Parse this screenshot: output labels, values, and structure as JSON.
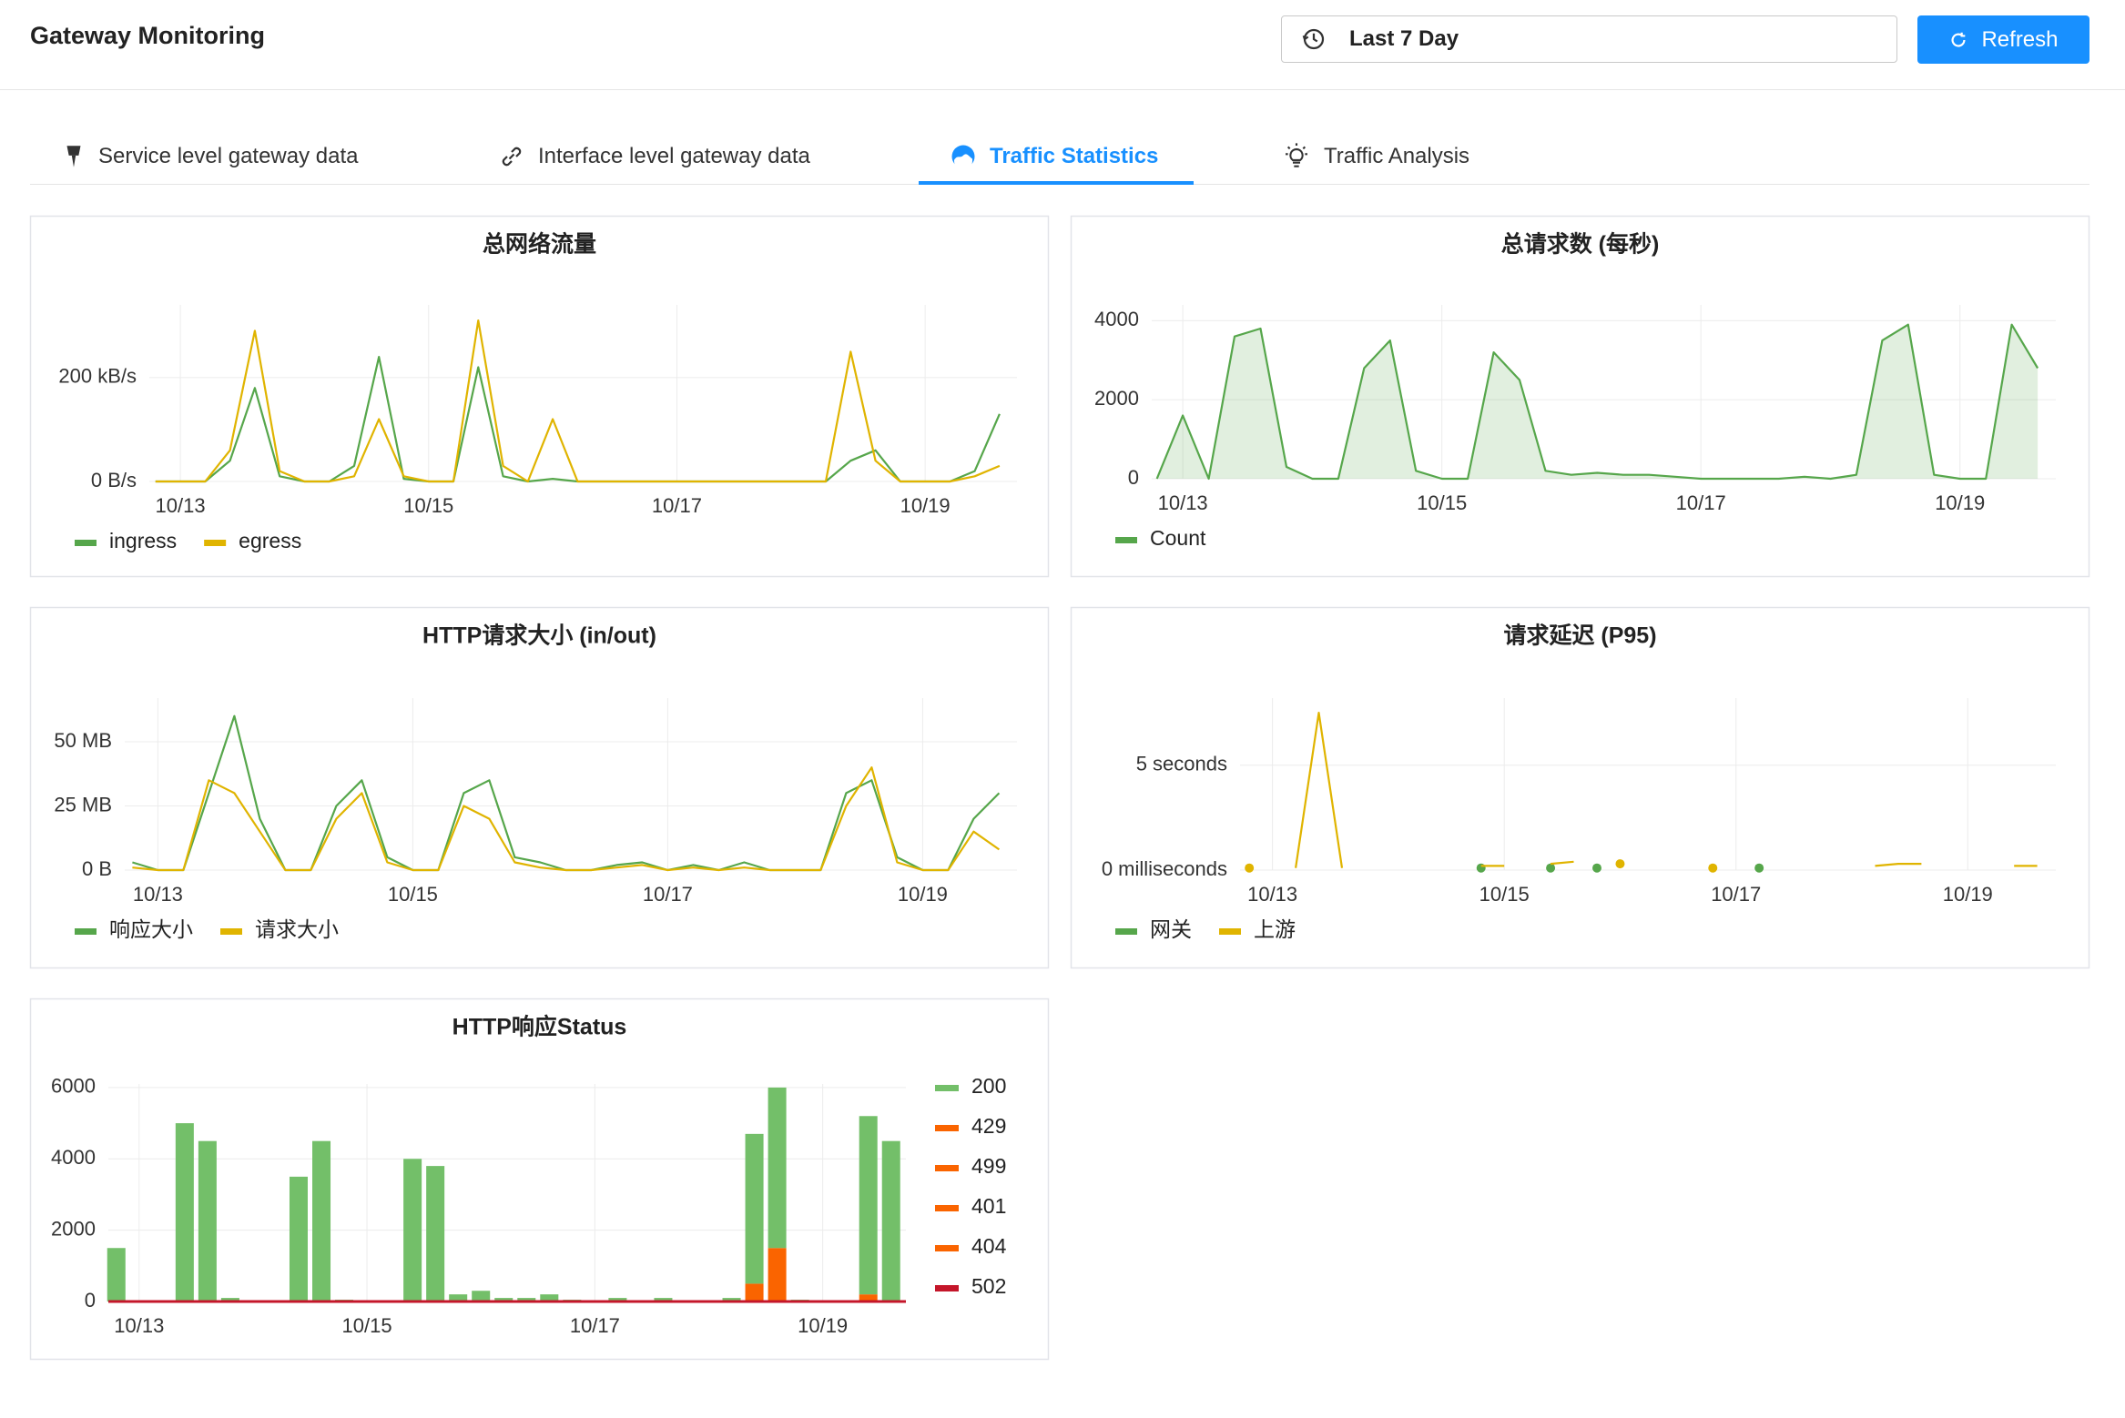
{
  "header": {
    "title": "Gateway Monitoring",
    "time_range": "Last 7 Day",
    "refresh": "Refresh"
  },
  "tabs": [
    "Service level gateway data",
    "Interface level gateway data",
    "Traffic Statistics",
    "Traffic Analysis"
  ],
  "active_tab": 2,
  "chart_data": [
    {
      "type": "line",
      "title": "总网络流量",
      "legend": "bottom",
      "x": [
        12.8,
        13,
        13.2,
        13.4,
        13.6,
        13.8,
        14,
        14.2,
        14.4,
        14.6,
        14.8,
        15,
        15.2,
        15.4,
        15.6,
        15.8,
        16,
        16.2,
        16.4,
        16.6,
        16.8,
        17,
        17.2,
        17.4,
        17.6,
        17.8,
        18,
        18.2,
        18.4,
        18.6,
        18.8,
        19,
        19.2,
        19.4,
        19.6
      ],
      "xlim": [
        12.75,
        19.74
      ],
      "xticks": [
        {
          "value": 13,
          "label": "10/13"
        },
        {
          "value": 15,
          "label": "10/15"
        },
        {
          "value": 17,
          "label": "10/17"
        },
        {
          "value": 19,
          "label": "10/19"
        }
      ],
      "ylim": [
        0,
        340
      ],
      "yticks": [
        {
          "value": 0,
          "label": "0 B/s"
        },
        {
          "value": 200,
          "label": "200 kB/s"
        }
      ],
      "series": [
        {
          "name": "ingress",
          "color": "#56a64b",
          "values": [
            0,
            0,
            0,
            40,
            180,
            10,
            0,
            0,
            30,
            240,
            5,
            0,
            0,
            220,
            10,
            0,
            5,
            0,
            0,
            0,
            0,
            0,
            0,
            0,
            0,
            0,
            0,
            0,
            40,
            60,
            0,
            0,
            0,
            20,
            130
          ]
        },
        {
          "name": "egress",
          "color": "#e0b400",
          "values": [
            0,
            0,
            0,
            60,
            290,
            20,
            0,
            0,
            10,
            120,
            10,
            0,
            0,
            310,
            30,
            0,
            120,
            0,
            0,
            0,
            0,
            0,
            0,
            0,
            0,
            0,
            0,
            0,
            250,
            40,
            0,
            0,
            0,
            10,
            30
          ]
        }
      ]
    },
    {
      "type": "line",
      "title": "总请求数 (每秒)",
      "legend": "bottom",
      "area": true,
      "x": [
        12.8,
        13,
        13.2,
        13.4,
        13.6,
        13.8,
        14,
        14.2,
        14.4,
        14.6,
        14.8,
        15,
        15.2,
        15.4,
        15.6,
        15.8,
        16,
        16.2,
        16.4,
        16.6,
        16.8,
        17,
        17.2,
        17.4,
        17.6,
        17.8,
        18,
        18.2,
        18.4,
        18.6,
        18.8,
        19,
        19.2,
        19.4,
        19.6
      ],
      "xlim": [
        12.76,
        19.74
      ],
      "xticks": [
        {
          "value": 13,
          "label": "10/13"
        },
        {
          "value": 15,
          "label": "10/15"
        },
        {
          "value": 17,
          "label": "10/17"
        },
        {
          "value": 19,
          "label": "10/19"
        }
      ],
      "ylim": [
        0,
        4400
      ],
      "yticks": [
        0,
        2000,
        4000
      ],
      "series": [
        {
          "name": "Count",
          "color": "#56a64b",
          "values": [
            0,
            1600,
            0,
            3600,
            3800,
            300,
            0,
            0,
            2800,
            3500,
            200,
            0,
            0,
            3200,
            2500,
            200,
            100,
            150,
            100,
            100,
            50,
            0,
            0,
            0,
            0,
            50,
            0,
            100,
            3500,
            3900,
            100,
            0,
            0,
            3900,
            2800
          ]
        }
      ]
    },
    {
      "type": "line",
      "title": "HTTP请求大小 (in/out)",
      "legend": "bottom",
      "x": [
        12.8,
        13,
        13.2,
        13.4,
        13.6,
        13.8,
        14,
        14.2,
        14.4,
        14.6,
        14.8,
        15,
        15.2,
        15.4,
        15.6,
        15.8,
        16,
        16.2,
        16.4,
        16.6,
        16.8,
        17,
        17.2,
        17.4,
        17.6,
        17.8,
        18,
        18.2,
        18.4,
        18.6,
        18.8,
        19,
        19.2,
        19.4,
        19.6
      ],
      "xlim": [
        12.74,
        19.74
      ],
      "xticks": [
        {
          "value": 13,
          "label": "10/13"
        },
        {
          "value": 15,
          "label": "10/15"
        },
        {
          "value": 17,
          "label": "10/17"
        },
        {
          "value": 19,
          "label": "10/19"
        }
      ],
      "ylim": [
        0,
        67
      ],
      "yticks": [
        {
          "value": 0,
          "label": "0 B"
        },
        {
          "value": 25,
          "label": "25 MB"
        },
        {
          "value": 50,
          "label": "50 MB"
        }
      ],
      "series": [
        {
          "name": "响应大小",
          "color": "#56a64b",
          "values": [
            3,
            0,
            0,
            30,
            60,
            20,
            0,
            0,
            25,
            35,
            5,
            0,
            0,
            30,
            35,
            5,
            3,
            0,
            0,
            2,
            3,
            0,
            2,
            0,
            3,
            0,
            0,
            0,
            30,
            35,
            5,
            0,
            0,
            20,
            30
          ]
        },
        {
          "name": "请求大小",
          "color": "#e0b400",
          "values": [
            1,
            0,
            0,
            35,
            30,
            15,
            0,
            0,
            20,
            30,
            3,
            0,
            0,
            25,
            20,
            3,
            1,
            0,
            0,
            1,
            2,
            0,
            1,
            0,
            1,
            0,
            0,
            0,
            25,
            40,
            3,
            0,
            0,
            15,
            8
          ]
        }
      ]
    },
    {
      "type": "line",
      "title": "请求延迟 (P95)",
      "legend": "bottom",
      "x": [
        12.8,
        13,
        13.2,
        13.4,
        13.6,
        13.8,
        14,
        14.2,
        14.4,
        14.6,
        14.8,
        15,
        15.2,
        15.4,
        15.6,
        15.8,
        16,
        16.2,
        16.4,
        16.6,
        16.8,
        17,
        17.2,
        17.4,
        17.6,
        17.8,
        18,
        18.2,
        18.4,
        18.6,
        18.8,
        19,
        19.2,
        19.4,
        19.6
      ],
      "xlim": [
        12.72,
        19.76
      ],
      "xticks": [
        {
          "value": 13,
          "label": "10/13"
        },
        {
          "value": 15,
          "label": "10/15"
        },
        {
          "value": 17,
          "label": "10/17"
        },
        {
          "value": 19,
          "label": "10/19"
        }
      ],
      "ylim": [
        0,
        8.2
      ],
      "yticks": [
        {
          "value": 0,
          "label": "0 milliseconds"
        },
        {
          "value": 5,
          "label": "5 seconds"
        }
      ],
      "series": [
        {
          "name": "网关",
          "color": "#56a64b",
          "values": [
            null,
            null,
            null,
            null,
            null,
            null,
            null,
            null,
            null,
            null,
            0.1,
            null,
            null,
            0.1,
            null,
            0.1,
            null,
            null,
            null,
            null,
            null,
            null,
            0.1,
            null,
            null,
            null,
            null,
            null,
            null,
            null,
            null,
            null,
            null,
            null,
            null
          ]
        },
        {
          "name": "上游",
          "color": "#e0b400",
          "values": [
            0.1,
            null,
            0.1,
            7.5,
            0.1,
            null,
            null,
            null,
            null,
            null,
            0.2,
            0.2,
            null,
            0.3,
            0.4,
            null,
            0.3,
            null,
            null,
            null,
            0.1,
            null,
            null,
            null,
            null,
            null,
            null,
            0.2,
            0.3,
            0.3,
            null,
            null,
            null,
            0.2,
            0.2
          ]
        }
      ]
    },
    {
      "type": "bar",
      "title": "HTTP响应Status",
      "legend": "right",
      "x": [
        12.8,
        13,
        13.2,
        13.4,
        13.6,
        13.8,
        14,
        14.2,
        14.4,
        14.6,
        14.8,
        15,
        15.2,
        15.4,
        15.6,
        15.8,
        16,
        16.2,
        16.4,
        16.6,
        16.8,
        17,
        17.2,
        17.4,
        17.6,
        17.8,
        18,
        18.2,
        18.4,
        18.6,
        18.8,
        19,
        19.2,
        19.4,
        19.6
      ],
      "xlim": [
        12.73,
        19.73
      ],
      "xticks": [
        {
          "value": 13,
          "label": "10/13"
        },
        {
          "value": 15,
          "label": "10/15"
        },
        {
          "value": 17,
          "label": "10/17"
        },
        {
          "value": 19,
          "label": "10/19"
        }
      ],
      "ylim": [
        0,
        6100
      ],
      "yticks": [
        0,
        2000,
        4000,
        6000
      ],
      "series": [
        {
          "name": "200",
          "color": "#73bf69",
          "values": [
            1500,
            0,
            0,
            5000,
            4500,
            100,
            0,
            0,
            3500,
            4500,
            50,
            0,
            0,
            4000,
            3800,
            200,
            300,
            100,
            100,
            200,
            50,
            0,
            100,
            0,
            100,
            0,
            0,
            100,
            4200,
            4500,
            50,
            0,
            0,
            5000,
            4500
          ]
        },
        {
          "name": "429",
          "color": "#fa6400",
          "values": [
            0,
            0,
            0,
            0,
            0,
            0,
            0,
            0,
            0,
            0,
            0,
            0,
            0,
            0,
            0,
            0,
            0,
            0,
            0,
            0,
            0,
            0,
            0,
            0,
            0,
            0,
            0,
            0,
            0,
            1500,
            0,
            0,
            0,
            0,
            0
          ]
        },
        {
          "name": "499",
          "color": "#fa6400",
          "values": [
            0,
            0,
            0,
            0,
            0,
            0,
            0,
            0,
            0,
            0,
            0,
            0,
            0,
            0,
            0,
            0,
            0,
            0,
            0,
            0,
            0,
            0,
            0,
            0,
            0,
            0,
            0,
            0,
            500,
            0,
            0,
            0,
            0,
            0,
            0
          ]
        },
        {
          "name": "401",
          "color": "#fa6400",
          "values": [
            0,
            0,
            0,
            0,
            0,
            0,
            0,
            0,
            0,
            0,
            0,
            0,
            0,
            0,
            0,
            0,
            0,
            0,
            0,
            0,
            0,
            0,
            0,
            0,
            0,
            0,
            0,
            0,
            0,
            0,
            0,
            0,
            0,
            0,
            0
          ]
        },
        {
          "name": "404",
          "color": "#fa6400",
          "values": [
            0,
            0,
            0,
            0,
            0,
            0,
            0,
            0,
            0,
            0,
            0,
            0,
            0,
            0,
            0,
            0,
            0,
            0,
            0,
            0,
            0,
            0,
            0,
            0,
            0,
            0,
            0,
            0,
            0,
            0,
            0,
            0,
            0,
            200,
            0
          ]
        },
        {
          "name": "502",
          "color": "#c4162a",
          "values": [
            0,
            0,
            0,
            0,
            0,
            0,
            0,
            0,
            0,
            0,
            0,
            0,
            0,
            0,
            0,
            0,
            0,
            0,
            0,
            0,
            0,
            0,
            0,
            0,
            0,
            0,
            0,
            0,
            0,
            0,
            0,
            0,
            0,
            0,
            0
          ]
        }
      ]
    }
  ]
}
